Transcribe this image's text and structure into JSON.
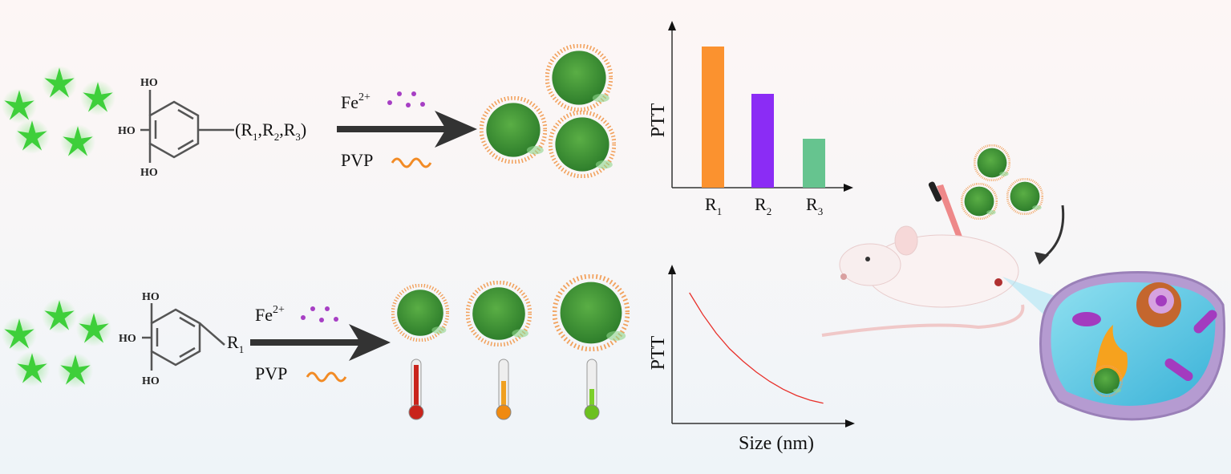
{
  "scheme_top": {
    "substituent": {
      "open": "(",
      "r1": "R",
      "s1": "1",
      "r2": "R",
      "s2": "2",
      "r3": "R",
      "s3": "3",
      "close": ")"
    },
    "hydroxyl_labels": [
      "HO",
      "HO",
      "HO"
    ],
    "reagent_ion": {
      "base": "Fe",
      "charge": "2+"
    },
    "reagent_polymer": "PVP"
  },
  "scheme_bottom": {
    "substituent": {
      "r": "R",
      "s": "1"
    },
    "hydroxyl_labels": [
      "HO",
      "HO",
      "HO"
    ],
    "reagent_ion": {
      "base": "Fe",
      "charge": "2+"
    },
    "reagent_polymer": "PVP"
  },
  "chart_data": [
    {
      "type": "bar",
      "title": "",
      "ylabel": "PTT",
      "xlabel": "",
      "categories": [
        {
          "main": "R",
          "sub": "1"
        },
        {
          "main": "R",
          "sub": "2"
        },
        {
          "main": "R",
          "sub": "3"
        }
      ],
      "values": [
        0.88,
        0.585,
        0.305
      ],
      "ylim": [
        0,
        1
      ],
      "colors": [
        "#fb922f",
        "#8b2cf5",
        "#66c48f"
      ],
      "grid": false
    },
    {
      "type": "line",
      "title": "",
      "ylabel": "PTT",
      "xlabel": "Size (nm)",
      "x": [
        0,
        0.1,
        0.2,
        0.3,
        0.4,
        0.5,
        0.6,
        0.7,
        0.8,
        0.9,
        1.0
      ],
      "y": [
        0.84,
        0.7,
        0.58,
        0.48,
        0.4,
        0.33,
        0.27,
        0.22,
        0.18,
        0.15,
        0.13
      ],
      "xlim": [
        -0.13,
        1.2
      ],
      "ylim": [
        0,
        1
      ],
      "color": "#e8302a",
      "grid": false
    }
  ],
  "colors": {
    "nanoparticle": "#3f9a36",
    "shell": "#f2a15c",
    "arrow": "#333333",
    "fe_dots": "#a73fc4",
    "star": "#3ecf3a"
  }
}
